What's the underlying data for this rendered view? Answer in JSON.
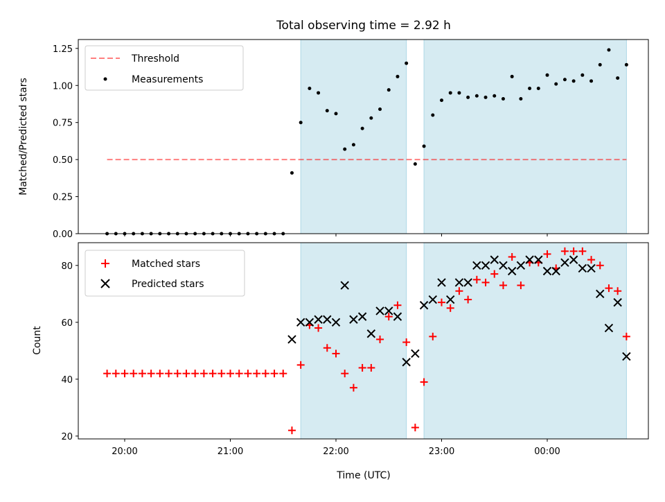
{
  "chart_data": [
    {
      "type": "scatter",
      "title": "Total observing time = 2.92 h",
      "ylabel": "Matched/Predicted stars",
      "ylim": [
        0,
        1.31
      ],
      "yticks": [
        "0.00",
        "0.25",
        "0.50",
        "0.75",
        "1.00",
        "1.25"
      ],
      "threshold": 0.5,
      "legend": {
        "position": "upper left",
        "entries": [
          "Threshold",
          "Measurements"
        ]
      },
      "series": [
        {
          "name": "Measurements",
          "points": [
            [
              "19:50",
              0
            ],
            [
              "19:55",
              0
            ],
            [
              "20:00",
              0
            ],
            [
              "20:05",
              0
            ],
            [
              "20:10",
              0
            ],
            [
              "20:15",
              0
            ],
            [
              "20:20",
              0
            ],
            [
              "20:25",
              0
            ],
            [
              "20:30",
              0
            ],
            [
              "20:35",
              0
            ],
            [
              "20:40",
              0
            ],
            [
              "20:45",
              0
            ],
            [
              "20:50",
              0
            ],
            [
              "20:55",
              0
            ],
            [
              "21:00",
              0
            ],
            [
              "21:05",
              0
            ],
            [
              "21:10",
              0
            ],
            [
              "21:15",
              0
            ],
            [
              "21:20",
              0
            ],
            [
              "21:25",
              0
            ],
            [
              "21:30",
              0
            ],
            [
              "21:35",
              0.41
            ],
            [
              "21:40",
              0.75
            ],
            [
              "21:45",
              0.98
            ],
            [
              "21:50",
              0.95
            ],
            [
              "21:55",
              0.83
            ],
            [
              "22:00",
              0.81
            ],
            [
              "22:05",
              0.57
            ],
            [
              "22:10",
              0.6
            ],
            [
              "22:15",
              0.71
            ],
            [
              "22:20",
              0.78
            ],
            [
              "22:25",
              0.84
            ],
            [
              "22:30",
              0.97
            ],
            [
              "22:35",
              1.06
            ],
            [
              "22:40",
              1.15
            ],
            [
              "22:45",
              0.47
            ],
            [
              "22:50",
              0.59
            ],
            [
              "22:55",
              0.8
            ],
            [
              "23:00",
              0.9
            ],
            [
              "23:05",
              0.95
            ],
            [
              "23:10",
              0.95
            ],
            [
              "23:15",
              0.92
            ],
            [
              "23:20",
              0.93
            ],
            [
              "23:25",
              0.92
            ],
            [
              "23:30",
              0.93
            ],
            [
              "23:35",
              0.91
            ],
            [
              "23:40",
              1.06
            ],
            [
              "23:45",
              0.91
            ],
            [
              "23:50",
              0.98
            ],
            [
              "23:55",
              0.98
            ],
            [
              "00:00",
              1.07
            ],
            [
              "00:05",
              1.01
            ],
            [
              "00:10",
              1.04
            ],
            [
              "00:15",
              1.03
            ],
            [
              "00:20",
              1.07
            ],
            [
              "00:25",
              1.03
            ],
            [
              "00:30",
              1.14
            ],
            [
              "00:35",
              1.24
            ],
            [
              "00:40",
              1.05
            ],
            [
              "00:45",
              1.14
            ]
          ]
        }
      ]
    },
    {
      "type": "scatter",
      "ylabel": "Count",
      "xlabel": "Time (UTC)",
      "ylim": [
        19,
        88
      ],
      "yticks": [
        "20",
        "40",
        "60",
        "80"
      ],
      "xticks": [
        "20:00",
        "21:00",
        "22:00",
        "23:00",
        "00:00"
      ],
      "legend": {
        "position": "upper left",
        "entries": [
          "Matched stars",
          "Predicted stars"
        ]
      },
      "series": [
        {
          "name": "Matched stars",
          "points": [
            [
              "19:50",
              42
            ],
            [
              "19:55",
              42
            ],
            [
              "20:00",
              42
            ],
            [
              "20:05",
              42
            ],
            [
              "20:10",
              42
            ],
            [
              "20:15",
              42
            ],
            [
              "20:20",
              42
            ],
            [
              "20:25",
              42
            ],
            [
              "20:30",
              42
            ],
            [
              "20:35",
              42
            ],
            [
              "20:40",
              42
            ],
            [
              "20:45",
              42
            ],
            [
              "20:50",
              42
            ],
            [
              "20:55",
              42
            ],
            [
              "21:00",
              42
            ],
            [
              "21:05",
              42
            ],
            [
              "21:10",
              42
            ],
            [
              "21:15",
              42
            ],
            [
              "21:20",
              42
            ],
            [
              "21:25",
              42
            ],
            [
              "21:30",
              42
            ],
            [
              "21:35",
              22
            ],
            [
              "21:40",
              45
            ],
            [
              "21:45",
              59
            ],
            [
              "21:50",
              58
            ],
            [
              "21:55",
              51
            ],
            [
              "22:00",
              49
            ],
            [
              "22:05",
              42
            ],
            [
              "22:10",
              37
            ],
            [
              "22:15",
              44
            ],
            [
              "22:20",
              44
            ],
            [
              "22:25",
              54
            ],
            [
              "22:30",
              62
            ],
            [
              "22:35",
              66
            ],
            [
              "22:40",
              53
            ],
            [
              "22:45",
              23
            ],
            [
              "22:50",
              39
            ],
            [
              "22:55",
              55
            ],
            [
              "23:00",
              67
            ],
            [
              "23:05",
              65
            ],
            [
              "23:10",
              71
            ],
            [
              "23:15",
              68
            ],
            [
              "23:20",
              75
            ],
            [
              "23:25",
              74
            ],
            [
              "23:30",
              77
            ],
            [
              "23:35",
              73
            ],
            [
              "23:40",
              83
            ],
            [
              "23:45",
              73
            ],
            [
              "23:50",
              81
            ],
            [
              "23:55",
              81
            ],
            [
              "00:00",
              84
            ],
            [
              "00:05",
              79
            ],
            [
              "00:10",
              85
            ],
            [
              "00:15",
              85
            ],
            [
              "00:20",
              85
            ],
            [
              "00:25",
              82
            ],
            [
              "00:30",
              80
            ],
            [
              "00:35",
              72
            ],
            [
              "00:40",
              71
            ],
            [
              "00:45",
              55
            ]
          ]
        },
        {
          "name": "Predicted stars",
          "points": [
            [
              "21:35",
              54
            ],
            [
              "21:40",
              60
            ],
            [
              "21:45",
              60
            ],
            [
              "21:50",
              61
            ],
            [
              "21:55",
              61
            ],
            [
              "22:00",
              60
            ],
            [
              "22:05",
              73
            ],
            [
              "22:10",
              61
            ],
            [
              "22:15",
              62
            ],
            [
              "22:20",
              56
            ],
            [
              "22:25",
              64
            ],
            [
              "22:30",
              64
            ],
            [
              "22:35",
              62
            ],
            [
              "22:40",
              46
            ],
            [
              "22:45",
              49
            ],
            [
              "22:50",
              66
            ],
            [
              "22:55",
              68
            ],
            [
              "23:00",
              74
            ],
            [
              "23:05",
              68
            ],
            [
              "23:10",
              74
            ],
            [
              "23:15",
              74
            ],
            [
              "23:20",
              80
            ],
            [
              "23:25",
              80
            ],
            [
              "23:30",
              82
            ],
            [
              "23:35",
              80
            ],
            [
              "23:40",
              78
            ],
            [
              "23:45",
              80
            ],
            [
              "23:50",
              82
            ],
            [
              "23:55",
              82
            ],
            [
              "00:00",
              78
            ],
            [
              "00:05",
              78
            ],
            [
              "00:10",
              81
            ],
            [
              "00:15",
              82
            ],
            [
              "00:20",
              79
            ],
            [
              "00:25",
              79
            ],
            [
              "00:30",
              70
            ],
            [
              "00:35",
              58
            ],
            [
              "00:40",
              67
            ],
            [
              "00:45",
              48
            ]
          ]
        }
      ]
    }
  ],
  "observing_windows": [
    [
      "21:40",
      "22:40"
    ],
    [
      "22:50",
      "00:45"
    ]
  ],
  "colors": {
    "shade": "#add8e6",
    "threshold": "#ff0000",
    "measurements": "#000000",
    "matched": "#ff0000",
    "predicted": "#000000"
  }
}
